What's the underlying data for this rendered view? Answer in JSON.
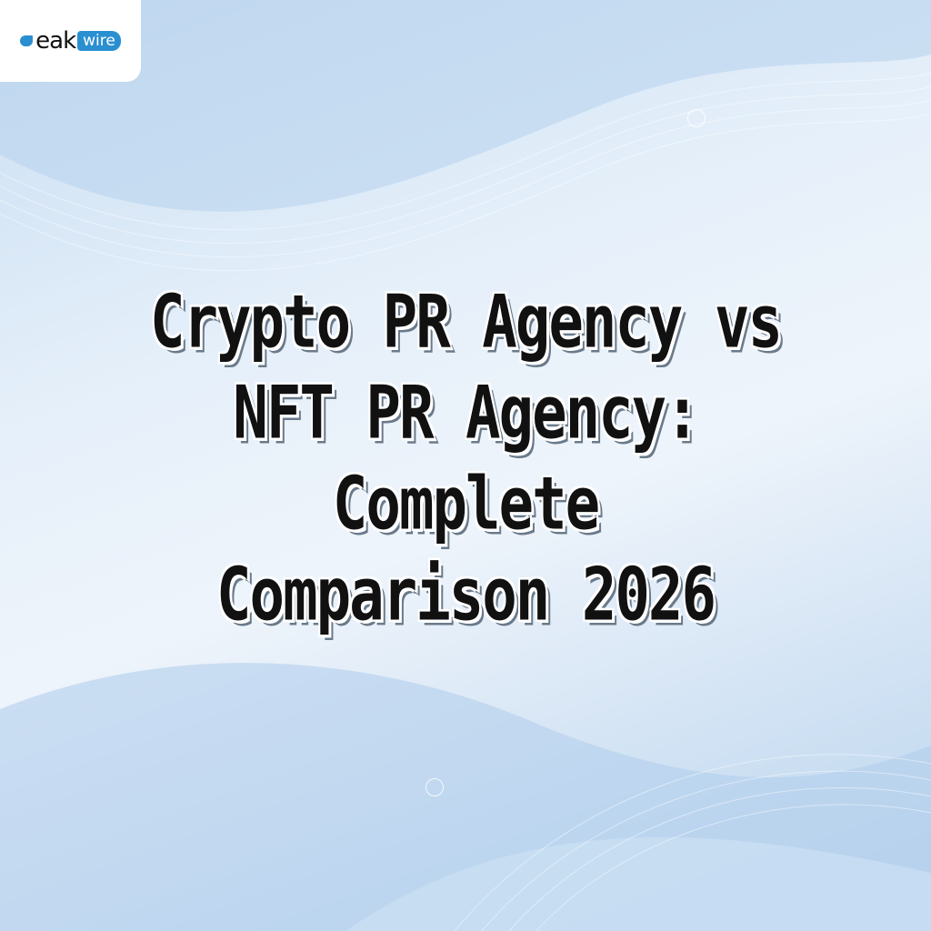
{
  "logo": {
    "text_main": "eak",
    "text_badge": "wire",
    "brand_color": "#2a8fd0"
  },
  "title": {
    "lines": [
      "Crypto PR Agency vs",
      "NFT PR Agency:",
      "Complete",
      "Comparison 2026"
    ]
  }
}
